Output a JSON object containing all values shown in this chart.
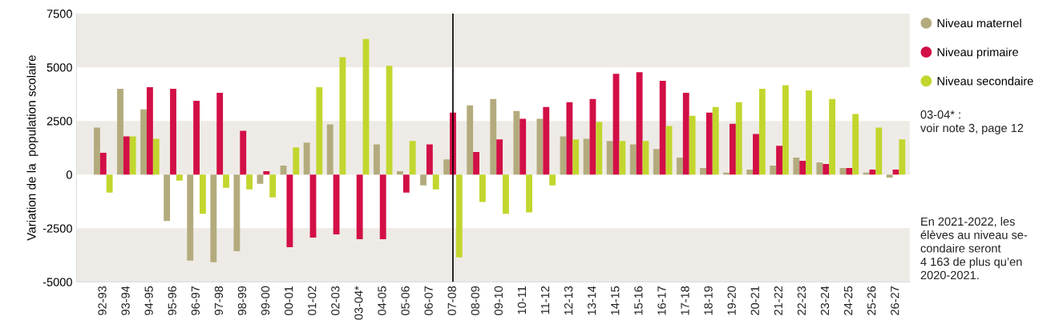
{
  "chart_data": {
    "type": "bar",
    "ylabel": "Variation de la  population scolaire",
    "categories": [
      "92-93",
      "93-94",
      "94-95",
      "95-96",
      "96-97",
      "97-98",
      "98-99",
      "99-00",
      "00-01",
      "01-02",
      "02-03",
      "03-04*",
      "04-05",
      "05-06",
      "06-07",
      "07-08",
      "08-09",
      "09-10",
      "10-11",
      "11-12",
      "12-13",
      "13-14",
      "14-15",
      "15-16",
      "16-17",
      "17-18",
      "18-19",
      "19-20",
      "20-21",
      "21-22",
      "22-23",
      "23-24",
      "24-25",
      "25-26",
      "26-27"
    ],
    "series": [
      {
        "name": "Niveau maternel",
        "color": "#b3ab7d",
        "values": [
          2190,
          4000,
          3040,
          -2160,
          -4010,
          -4080,
          -3570,
          -430,
          420,
          1490,
          2340,
          0,
          1410,
          160,
          -500,
          710,
          3220,
          3520,
          2960,
          2600,
          1780,
          1670,
          1560,
          1410,
          1190,
          790,
          310,
          90,
          230,
          420,
          790,
          570,
          310,
          90,
          -140
        ]
      },
      {
        "name": "Niveau primaire",
        "color": "#d20f46",
        "values": [
          1010,
          1780,
          4070,
          4000,
          3440,
          3810,
          2040,
          160,
          -3380,
          -2940,
          -2790,
          -3010,
          -3010,
          -840,
          1410,
          2890,
          1050,
          1640,
          2600,
          3150,
          3370,
          3520,
          4700,
          4770,
          4370,
          3810,
          2890,
          2370,
          1890,
          1340,
          640,
          490,
          310,
          230,
          230
        ]
      },
      {
        "name": "Niveau secondaire",
        "color": "#c2d62e",
        "values": [
          -840,
          1780,
          1670,
          -280,
          -1830,
          -620,
          -690,
          -1060,
          1270,
          4070,
          5470,
          6320,
          5070,
          1560,
          -690,
          -3860,
          -1280,
          -1830,
          -1760,
          -500,
          1640,
          2450,
          1560,
          1560,
          2260,
          2740,
          3150,
          3370,
          4000,
          4163,
          3920,
          3520,
          2820,
          2190,
          1640
        ]
      }
    ],
    "ylim": [
      -5000,
      7500
    ],
    "yticks": [
      -5000,
      -2500,
      0,
      2500,
      5000,
      7500
    ],
    "bands": [
      {
        "axis": "y",
        "from": 5000,
        "to": 7500,
        "color": "#eeebe6"
      },
      {
        "axis": "y",
        "from": 0,
        "to": 2500,
        "color": "#eeebe6"
      },
      {
        "axis": "y",
        "from": -5000,
        "to": -2500,
        "color": "#eeebe6"
      }
    ],
    "ref_lines": [
      {
        "axis": "x",
        "value": "07-08",
        "color": "#000000"
      }
    ],
    "legend": "right",
    "marker": "circle",
    "grid": false,
    "annotations": [
      "03-04* :\nvoir note 3, page 12",
      "En 2021-2022, les\nélèves au niveau se-\ncondaire seront\n4 163 de plus qu’en\n2020-2021."
    ]
  }
}
